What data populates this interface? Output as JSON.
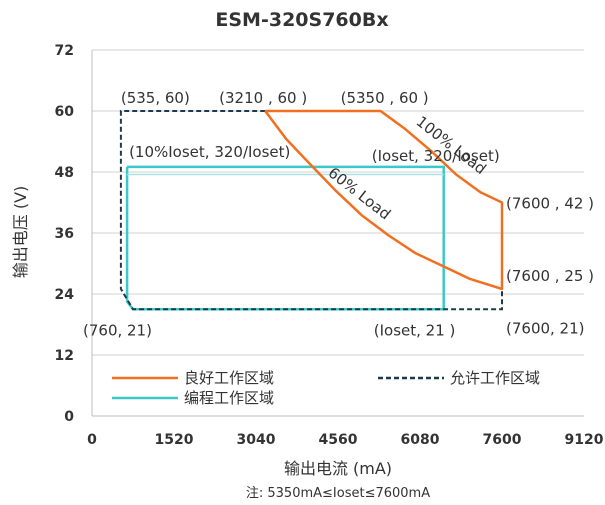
{
  "chart_data": {
    "type": "line",
    "title": "ESM-320S760Bx",
    "xlabel": "输出电流 (mA)",
    "ylabel": "输出电压 (V)",
    "note": "注: 5350mA≤Ioset≤7600mA",
    "xlim": [
      0,
      9120
    ],
    "ylim": [
      0,
      72
    ],
    "x_ticks": [
      0,
      1520,
      3040,
      4560,
      6080,
      7600,
      9120
    ],
    "y_ticks": [
      0,
      12,
      24,
      36,
      48,
      60,
      72
    ],
    "grid": "horizontal",
    "colors": {
      "good": "#F07020",
      "allowed": "#1F3A4D",
      "program": "#3CC8C8",
      "grid": "#D0D0D0",
      "axis": "#BFBFBF"
    },
    "series": [
      {
        "name": "良好工作区域",
        "style": "solid",
        "points": [
          [
            3210,
            60
          ],
          [
            5350,
            60
          ],
          [
            5800,
            56.5
          ],
          [
            6300,
            52
          ],
          [
            6750,
            47.5
          ],
          [
            7200,
            44
          ],
          [
            7600,
            42
          ],
          [
            7600,
            25
          ],
          [
            7000,
            27
          ],
          [
            6500,
            29.5
          ],
          [
            6000,
            32
          ],
          [
            5500,
            35.5
          ],
          [
            5000,
            39.5
          ],
          [
            4500,
            44.5
          ],
          [
            4000,
            50
          ],
          [
            3600,
            54.5
          ],
          [
            3210,
            60
          ]
        ]
      },
      {
        "name": "允许工作区域",
        "style": "dashed",
        "points": [
          [
            535,
            60
          ],
          [
            3210,
            60
          ],
          [
            3210,
            60
          ]
        ],
        "outline": [
          [
            3210,
            60
          ],
          [
            535,
            60
          ],
          [
            535,
            25
          ],
          [
            760,
            21
          ],
          [
            7600,
            21
          ],
          [
            7600,
            25
          ]
        ]
      },
      {
        "name": "编程工作区域",
        "style": "solid",
        "points": [
          [
            650,
            49
          ],
          [
            6520,
            49
          ],
          [
            6520,
            21
          ],
          [
            760,
            21
          ],
          [
            650,
            22.5
          ],
          [
            650,
            49
          ]
        ]
      }
    ],
    "inner_line": {
      "points": [
        [
          650,
          47.5
        ],
        [
          6520,
          47.5
        ]
      ]
    },
    "annotations": [
      {
        "text": "(535, 60)",
        "x": 535,
        "y": 60
      },
      {
        "text": "(3210 , 60 )",
        "x": 3210,
        "y": 60
      },
      {
        "text": "(5350 , 60 )",
        "x": 5350,
        "y": 60
      },
      {
        "text": "(10%Ioset, 320/Ioset)",
        "x": 650,
        "y": 49
      },
      {
        "text": "(Ioset, 320/Ioset)",
        "x": 6520,
        "y": 49
      },
      {
        "text": "(7600 , 42 )",
        "x": 7600,
        "y": 42
      },
      {
        "text": "(7600 , 25 )",
        "x": 7600,
        "y": 25
      },
      {
        "text": "(760, 21)",
        "x": 760,
        "y": 21
      },
      {
        "text": "(Ioset, 21 )",
        "x": 6520,
        "y": 21
      },
      {
        "text": "(7600, 21)",
        "x": 7600,
        "y": 21
      },
      {
        "text": "100% Load",
        "x": 6600,
        "y": 52.5,
        "rotate": 38
      },
      {
        "text": "60% Load",
        "x": 4900,
        "y": 43,
        "rotate": 38
      }
    ],
    "legend": [
      {
        "label": "良好工作区域",
        "style": "solid",
        "color": "#F07020"
      },
      {
        "label": "允许工作区域",
        "style": "dashed",
        "color": "#1F3A4D"
      },
      {
        "label": "编程工作区域",
        "style": "solid",
        "color": "#3CC8C8"
      }
    ]
  }
}
